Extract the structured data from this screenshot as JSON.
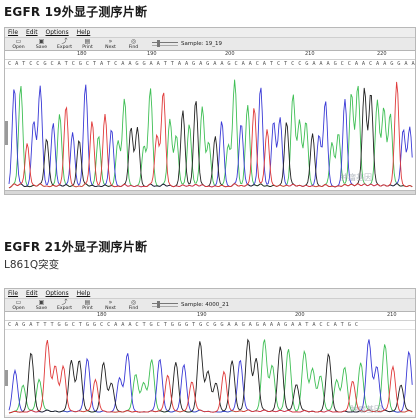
{
  "section1": {
    "title": "EGFR 19外显子测序片断",
    "menu": [
      "File",
      "Edit",
      "Options",
      "Help"
    ],
    "toolbar": [
      {
        "label": "Open",
        "icon": "folder-icon",
        "glyph": "▭"
      },
      {
        "label": "Save",
        "icon": "save-icon",
        "glyph": "▣"
      },
      {
        "label": "Export",
        "icon": "export-icon",
        "glyph": "⤴"
      },
      {
        "label": "Print",
        "icon": "print-icon",
        "glyph": "▤"
      },
      {
        "label": "Next",
        "icon": "next-icon",
        "glyph": "»"
      },
      {
        "label": "Find",
        "icon": "find-icon",
        "glyph": "◎"
      }
    ],
    "sample": "Sample: 19_19",
    "ruler_ticks": [
      "180",
      "190",
      "200",
      "210",
      "220"
    ],
    "bases": "C A T C C G C A T C G C T A T C A A G G A A T T A A G A G A A G C A A C A T C T C C G A A A G C C A A C A A G G A A A T C C",
    "watermark": "肿瘤基因"
  },
  "section2": {
    "title": "EGFR 21外显子测序片断",
    "mutation": "L861Q突变",
    "menu": [
      "File",
      "Edit",
      "Options",
      "Help"
    ],
    "toolbar": [
      {
        "label": "Open",
        "icon": "folder-icon",
        "glyph": "▭"
      },
      {
        "label": "Save",
        "icon": "save-icon",
        "glyph": "▣"
      },
      {
        "label": "Export",
        "icon": "export-icon",
        "glyph": "⤴"
      },
      {
        "label": "Print",
        "icon": "print-icon",
        "glyph": "▤"
      },
      {
        "label": "Next",
        "icon": "next-icon",
        "glyph": "»"
      },
      {
        "label": "Find",
        "icon": "find-icon",
        "glyph": "◎"
      }
    ],
    "sample": "Sample: 4000_21",
    "ruler_ticks": [
      "180",
      "190",
      "200",
      "210"
    ],
    "bases": "C A G A T T T G G C T G G C C A A A C T G C T G G G T G C G G A A G A G A A A G A A T A C C A T G C",
    "watermark": "肿瘤基因"
  },
  "colors": {
    "A": "#3fbf55",
    "C": "#3a3ad6",
    "G": "#222222",
    "T": "#e03a3a"
  }
}
